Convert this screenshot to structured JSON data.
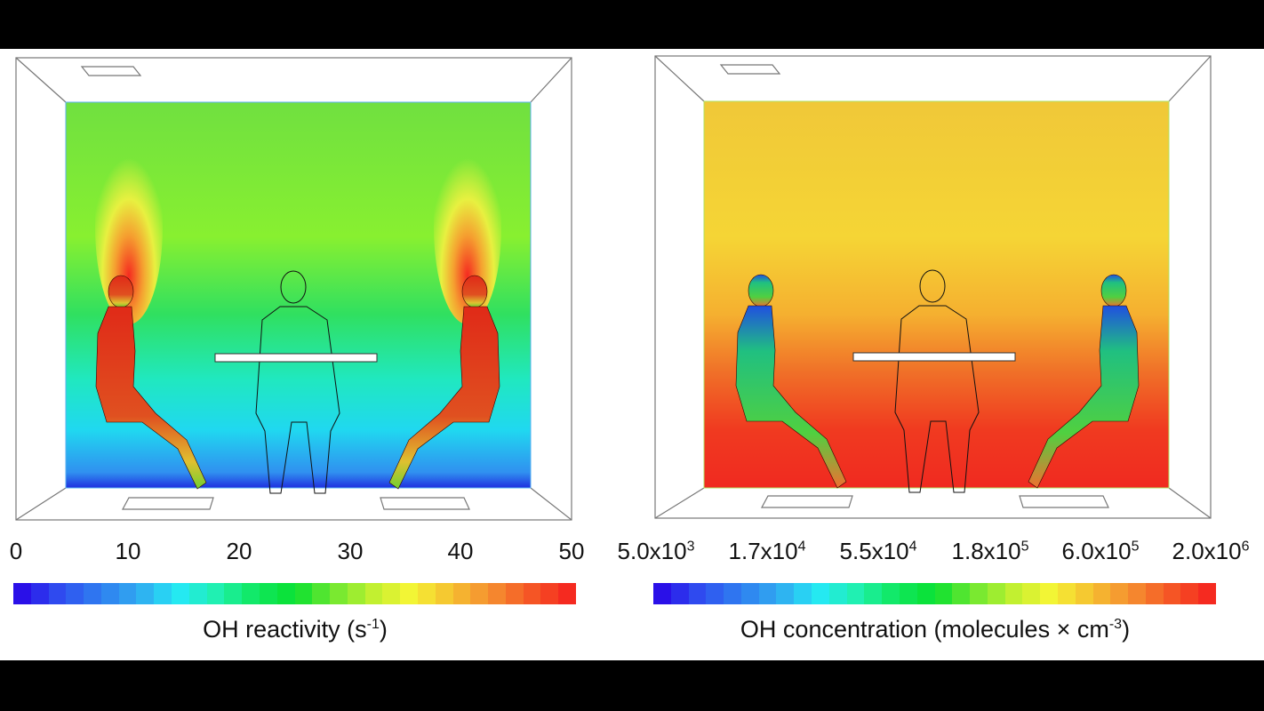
{
  "left_panel": {
    "colorbar": {
      "ticks": [
        "0",
        "10",
        "20",
        "30",
        "40",
        "50"
      ],
      "title_main": "OH reactivity (s",
      "title_sup": "-1",
      "title_end": ")"
    }
  },
  "right_panel": {
    "colorbar": {
      "ticks": [
        {
          "base": "5.0x10",
          "exp": "3"
        },
        {
          "base": "1.7x10",
          "exp": "4"
        },
        {
          "base": "5.5x10",
          "exp": "4"
        },
        {
          "base": "1.8x10",
          "exp": "5"
        },
        {
          "base": "6.0x10",
          "exp": "5"
        },
        {
          "base": "2.0x10",
          "exp": "6"
        }
      ],
      "title_main": "OH concentration (molecules × cm",
      "title_sup": "-3",
      "title_end": ")"
    }
  },
  "colormap": [
    "#2a10e8",
    "#2f50f0",
    "#2f7ef0",
    "#30aaf0",
    "#25e8f5",
    "#20f0b0",
    "#10e860",
    "#0ae030",
    "#70e830",
    "#c0f030",
    "#f5f535",
    "#f5c030",
    "#f59030",
    "#f55a25",
    "#f52a20"
  ]
}
